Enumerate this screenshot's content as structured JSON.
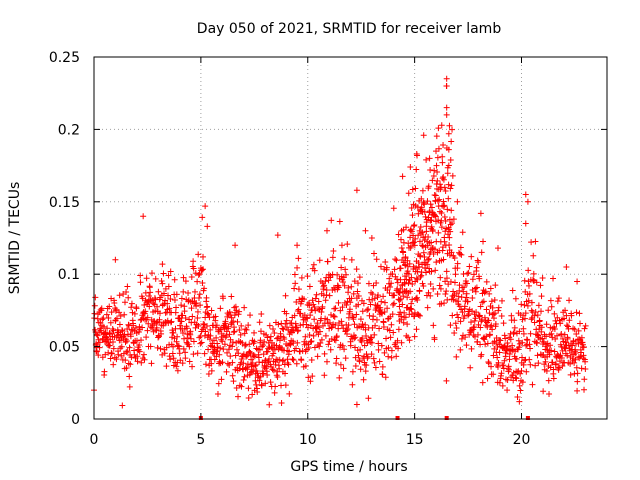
{
  "chart_data": {
    "type": "scatter",
    "title": "Day 050 of 2021, SRMTID for receiver lamb",
    "xlabel": "GPS time / hours",
    "ylabel": "SRMTID / TECUs",
    "xlim": [
      0,
      24
    ],
    "ylim": [
      0,
      0.25
    ],
    "x_ticks": [
      0,
      5,
      10,
      15,
      20
    ],
    "x_tick_labels": [
      "0",
      "5",
      "10",
      "15",
      "20"
    ],
    "y_ticks": [
      0,
      0.05,
      0.1,
      0.15,
      0.2,
      0.25
    ],
    "y_tick_labels": [
      "0",
      "0.05",
      "0.1",
      "0.15",
      "0.2",
      "0.25"
    ],
    "grid": true,
    "marker": "plus",
    "color": "#ff0000",
    "series": [
      {
        "name": "SRMTID",
        "trend": [
          [
            0.0,
            0.062,
            0.012
          ],
          [
            1.0,
            0.06,
            0.013
          ],
          [
            2.0,
            0.052,
            0.015
          ],
          [
            2.5,
            0.075,
            0.016
          ],
          [
            3.0,
            0.07,
            0.015
          ],
          [
            4.0,
            0.062,
            0.015
          ],
          [
            5.0,
            0.075,
            0.02
          ],
          [
            5.5,
            0.048,
            0.013
          ],
          [
            6.5,
            0.055,
            0.018
          ],
          [
            7.5,
            0.04,
            0.012
          ],
          [
            8.5,
            0.042,
            0.015
          ],
          [
            9.5,
            0.065,
            0.018
          ],
          [
            10.5,
            0.07,
            0.02
          ],
          [
            11.5,
            0.075,
            0.022
          ],
          [
            12.5,
            0.06,
            0.02
          ],
          [
            13.5,
            0.068,
            0.018
          ],
          [
            14.5,
            0.09,
            0.025
          ],
          [
            15.0,
            0.11,
            0.03
          ],
          [
            15.5,
            0.13,
            0.03
          ],
          [
            16.0,
            0.14,
            0.035
          ],
          [
            16.5,
            0.12,
            0.04
          ],
          [
            17.0,
            0.09,
            0.02
          ],
          [
            18.0,
            0.075,
            0.02
          ],
          [
            19.0,
            0.055,
            0.018
          ],
          [
            19.5,
            0.045,
            0.015
          ],
          [
            20.0,
            0.05,
            0.02
          ],
          [
            20.5,
            0.075,
            0.025
          ],
          [
            21.0,
            0.05,
            0.015
          ],
          [
            22.0,
            0.055,
            0.016
          ],
          [
            23.0,
            0.045,
            0.012
          ]
        ],
        "highlights": [
          [
            0.1,
            0.047
          ],
          [
            1.0,
            0.11
          ],
          [
            2.3,
            0.14
          ],
          [
            3.2,
            0.107
          ],
          [
            5.2,
            0.147
          ],
          [
            5.3,
            0.133
          ],
          [
            5.1,
            0.112
          ],
          [
            6.6,
            0.12
          ],
          [
            8.6,
            0.127
          ],
          [
            9.5,
            0.12
          ],
          [
            10.9,
            0.13
          ],
          [
            11.6,
            0.12
          ],
          [
            12.3,
            0.158
          ],
          [
            12.3,
            0.01
          ],
          [
            12.7,
            0.13
          ],
          [
            13.0,
            0.125
          ],
          [
            14.8,
            0.174
          ],
          [
            15.1,
            0.183
          ],
          [
            15.7,
            0.18
          ],
          [
            16.0,
            0.185
          ],
          [
            16.5,
            0.235
          ],
          [
            16.5,
            0.23
          ],
          [
            16.5,
            0.215
          ],
          [
            16.5,
            0.21
          ],
          [
            16.6,
            0.197
          ],
          [
            16.6,
            0.186
          ],
          [
            17.0,
            0.15
          ],
          [
            18.1,
            0.142
          ],
          [
            18.9,
            0.118
          ],
          [
            20.2,
            0.155
          ],
          [
            20.3,
            0.15
          ],
          [
            20.2,
            0.135
          ],
          [
            19.9,
            0.012
          ],
          [
            22.1,
            0.105
          ],
          [
            22.6,
            0.095
          ]
        ],
        "bursts": [
          [
            14.25,
            14.75,
            0.085,
            0.015
          ],
          [
            14.75,
            15.25,
            0.1,
            0.022
          ],
          [
            15.25,
            15.75,
            0.115,
            0.025
          ],
          [
            15.75,
            16.25,
            0.135,
            0.025
          ],
          [
            16.25,
            16.75,
            0.15,
            0.03
          ]
        ]
      }
    ],
    "axis_markers_x": [
      5.0,
      14.2,
      16.5,
      20.3
    ]
  }
}
